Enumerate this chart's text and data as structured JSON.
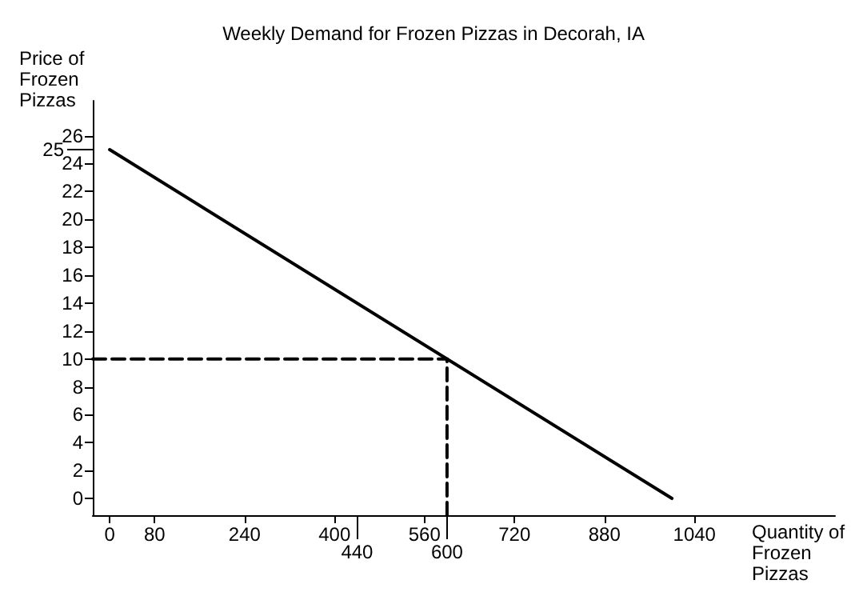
{
  "chart_data": {
    "type": "line",
    "title": "Weekly Demand for Frozen Pizzas in Decorah, IA",
    "xlabel": "Quantity of Frozen Pizzas",
    "ylabel": "Price of Frozen Pizzas",
    "xlim": [
      -30,
      1290
    ],
    "ylim": [
      -1.2,
      28.5
    ],
    "xticks": [
      0,
      80,
      240,
      400,
      {
        "value": 440,
        "label": null
      },
      560,
      {
        "value": 600,
        "label": null
      },
      720,
      880,
      1040
    ],
    "yticks": [
      0,
      2,
      4,
      6,
      8,
      10,
      12,
      14,
      16,
      18,
      20,
      22,
      24,
      {
        "value": 25,
        "label": null
      },
      26
    ],
    "annotations": [
      "440",
      "600",
      "25"
    ],
    "series": [
      {
        "color": "#000000",
        "x": [
          0,
          1000
        ],
        "values": [
          25,
          0
        ],
        "line_style": "solid"
      },
      {
        "color": "#000000",
        "x": [
          -30,
          600
        ],
        "values": [
          10,
          10
        ],
        "line_style": "dashed"
      },
      {
        "color": "#000000",
        "x": [
          600,
          600
        ],
        "values": [
          -1.2,
          10
        ],
        "line_style": "dashed"
      }
    ],
    "grid": false,
    "marker": "none"
  }
}
